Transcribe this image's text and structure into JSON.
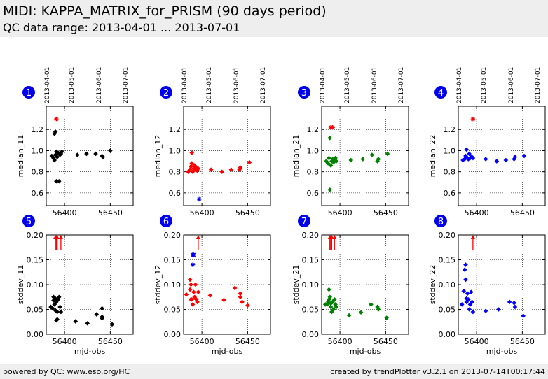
{
  "header": {
    "title": "MIDI: KAPPA_MATRIX_for_PRISM (90 days period)",
    "subtitle": "QC data range: 2013-04-01 ... 2013-07-01"
  },
  "footer": {
    "left": "powered by QC: www.eso.org/HC",
    "right": "created by trendPlotter v3.2.1 on 2013-07-14T00:17:44"
  },
  "colors": {
    "black": "#000000",
    "red": "#ff0000",
    "green": "#008000",
    "blue": "#0000ff",
    "badge": "#0000ee",
    "header_bg": "#eeeeee"
  },
  "chart_data": [
    {
      "type": "scatter",
      "panel": "1",
      "color": "#000000",
      "ylabel": "median_11",
      "xlim": [
        56380,
        56475
      ],
      "ylim": [
        0.48,
        1.42
      ],
      "yticks": [
        "0.6",
        "0.8",
        "1.0",
        "1.2"
      ],
      "xticks": [
        "56400",
        "56450"
      ],
      "top_ticks": [
        "2013-04-01",
        "2013-05-01",
        "2013-06-01",
        "2013-07-01"
      ],
      "points": [
        [
          56386,
          0.95
        ],
        [
          56388,
          0.93
        ],
        [
          56389,
          1.16
        ],
        [
          56390,
          1.18
        ],
        [
          56389,
          0.91
        ],
        [
          56390,
          0.96
        ],
        [
          56391,
          0.99
        ],
        [
          56392,
          0.94
        ],
        [
          56393,
          0.98
        ],
        [
          56394,
          0.97
        ],
        [
          56395,
          0.96
        ],
        [
          56396,
          0.97
        ],
        [
          56397,
          0.99
        ],
        [
          56391,
          0.71
        ],
        [
          56394,
          0.71
        ],
        [
          56414,
          0.96
        ],
        [
          56424,
          0.97
        ],
        [
          56434,
          0.97
        ],
        [
          56441,
          0.95
        ],
        [
          56442,
          0.94
        ],
        [
          56450,
          1.0
        ]
      ],
      "outliers": [
        [
          56391,
          1.3
        ]
      ],
      "arrows": []
    },
    {
      "type": "scatter",
      "panel": "2",
      "color": "#ff0000",
      "ylabel": "median_12",
      "xlim": [
        56380,
        56475
      ],
      "ylim": [
        0.48,
        1.42
      ],
      "yticks": [
        "0.6",
        "0.8",
        "1.0",
        "1.2"
      ],
      "xticks": [
        "56400",
        "56450"
      ],
      "top_ticks": [
        "2013-04-01",
        "2013-05-01",
        "2013-06-01",
        "2013-07-01"
      ],
      "points": [
        [
          56385,
          0.8
        ],
        [
          56387,
          0.82
        ],
        [
          56388,
          0.85
        ],
        [
          56389,
          0.98
        ],
        [
          56389,
          0.88
        ],
        [
          56390,
          0.8
        ],
        [
          56391,
          0.83
        ],
        [
          56392,
          0.86
        ],
        [
          56393,
          0.82
        ],
        [
          56394,
          0.84
        ],
        [
          56395,
          0.81
        ],
        [
          56396,
          0.83
        ],
        [
          56410,
          0.82
        ],
        [
          56422,
          0.8
        ],
        [
          56432,
          0.82
        ],
        [
          56441,
          0.82
        ],
        [
          56442,
          0.84
        ],
        [
          56452,
          0.89
        ]
      ],
      "outliers": [
        [
          56397,
          0.54,
          "#0000ff"
        ]
      ],
      "arrows": []
    },
    {
      "type": "scatter",
      "panel": "3",
      "color": "#008000",
      "ylabel": "median_21",
      "xlim": [
        56380,
        56475
      ],
      "ylim": [
        0.48,
        1.42
      ],
      "yticks": [
        "0.6",
        "0.8",
        "1.0",
        "1.2"
      ],
      "xticks": [
        "56400",
        "56450"
      ],
      "top_ticks": [
        "2013-04-01",
        "2013-05-01",
        "2013-06-01",
        "2013-07-01"
      ],
      "points": [
        [
          56385,
          0.9
        ],
        [
          56387,
          0.88
        ],
        [
          56388,
          0.93
        ],
        [
          56389,
          1.12
        ],
        [
          56390,
          0.86
        ],
        [
          56391,
          0.9
        ],
        [
          56392,
          0.92
        ],
        [
          56393,
          0.89
        ],
        [
          56394,
          0.91
        ],
        [
          56395,
          0.93
        ],
        [
          56396,
          0.9
        ],
        [
          56389,
          0.63
        ],
        [
          56412,
          0.91
        ],
        [
          56425,
          0.92
        ],
        [
          56435,
          0.96
        ],
        [
          56441,
          0.9
        ],
        [
          56442,
          0.92
        ],
        [
          56452,
          0.97
        ]
      ],
      "outliers": [
        [
          56390,
          1.22
        ],
        [
          56392,
          1.22
        ]
      ],
      "arrows": []
    },
    {
      "type": "scatter",
      "panel": "4",
      "color": "#0000ff",
      "ylabel": "median_22",
      "xlim": [
        56380,
        56475
      ],
      "ylim": [
        0.48,
        1.42
      ],
      "yticks": [
        "0.6",
        "0.8",
        "1.0",
        "1.2"
      ],
      "xticks": [
        "56400",
        "56450"
      ],
      "top_ticks": [
        "2013-04-01",
        "2013-05-01",
        "2013-06-01",
        "2013-07-01"
      ],
      "points": [
        [
          56385,
          0.91
        ],
        [
          56387,
          0.92
        ],
        [
          56388,
          0.95
        ],
        [
          56389,
          1.01
        ],
        [
          56390,
          0.93
        ],
        [
          56391,
          0.92
        ],
        [
          56392,
          0.97
        ],
        [
          56393,
          0.93
        ],
        [
          56394,
          0.94
        ],
        [
          56395,
          0.94
        ],
        [
          56396,
          0.93
        ],
        [
          56410,
          0.92
        ],
        [
          56422,
          0.9
        ],
        [
          56432,
          0.91
        ],
        [
          56441,
          0.92
        ],
        [
          56442,
          0.94
        ],
        [
          56452,
          0.95
        ]
      ],
      "outliers": [
        [
          56396,
          1.3
        ]
      ],
      "arrows": []
    },
    {
      "type": "scatter",
      "panel": "5",
      "color": "#000000",
      "ylabel": "stddev_11",
      "xlabel": "mjd-obs",
      "xlim": [
        56380,
        56475
      ],
      "ylim": [
        0.0,
        0.2
      ],
      "yticks": [
        "0.00",
        "0.05",
        "0.10",
        "0.15",
        "0.20"
      ],
      "xticks": [
        "56400",
        "56450"
      ],
      "points": [
        [
          56385,
          0.055
        ],
        [
          56387,
          0.052
        ],
        [
          56388,
          0.075
        ],
        [
          56388,
          0.068
        ],
        [
          56389,
          0.06
        ],
        [
          56390,
          0.048
        ],
        [
          56390,
          0.072
        ],
        [
          56391,
          0.065
        ],
        [
          56392,
          0.045
        ],
        [
          56392,
          0.03
        ],
        [
          56393,
          0.07
        ],
        [
          56394,
          0.075
        ],
        [
          56395,
          0.055
        ],
        [
          56396,
          0.045
        ],
        [
          56391,
          0.028
        ],
        [
          56412,
          0.026
        ],
        [
          56425,
          0.022
        ],
        [
          56435,
          0.04
        ],
        [
          56441,
          0.052
        ],
        [
          56441,
          0.035
        ],
        [
          56441,
          0.032
        ],
        [
          56452,
          0.02
        ]
      ],
      "outliers": [],
      "arrows": [
        [
          56390,
          "#ff0000"
        ],
        [
          56391,
          "#ff0000"
        ],
        [
          56392,
          "#ff0000"
        ],
        [
          56396,
          "#ff0000"
        ]
      ]
    },
    {
      "type": "scatter",
      "panel": "6",
      "color": "#ff0000",
      "ylabel": "stddev_12",
      "xlabel": "mjd-obs",
      "xlim": [
        56380,
        56475
      ],
      "ylim": [
        0.0,
        0.2
      ],
      "yticks": [
        "0.00",
        "0.05",
        "0.10",
        "0.15",
        "0.20"
      ],
      "xticks": [
        "56400",
        "56450"
      ],
      "points": [
        [
          56383,
          0.08
        ],
        [
          56387,
          0.11
        ],
        [
          56387,
          0.09
        ],
        [
          56388,
          0.07
        ],
        [
          56388,
          0.1
        ],
        [
          56389,
          0.07
        ],
        [
          56390,
          0.06
        ],
        [
          56391,
          0.085
        ],
        [
          56392,
          0.075
        ],
        [
          56393,
          0.1
        ],
        [
          56394,
          0.07
        ],
        [
          56395,
          0.065
        ],
        [
          56396,
          0.085
        ],
        [
          56409,
          0.078
        ],
        [
          56424,
          0.069
        ],
        [
          56436,
          0.093
        ],
        [
          56442,
          0.082
        ],
        [
          56442,
          0.075
        ],
        [
          56444,
          0.065
        ],
        [
          56450,
          0.058
        ]
      ],
      "outliers": [
        [
          56390,
          0.16,
          "#0000ff"
        ],
        [
          56391,
          0.16,
          "#0000ff"
        ],
        [
          56390,
          0.14,
          "#0000ff"
        ]
      ],
      "arrows": [
        [
          56396,
          "#ff0000"
        ]
      ]
    },
    {
      "type": "scatter",
      "panel": "7",
      "color": "#008000",
      "ylabel": "stddev_21",
      "xlabel": "mjd-obs",
      "xlim": [
        56380,
        56475
      ],
      "ylim": [
        0.0,
        0.2
      ],
      "yticks": [
        "0.00",
        "0.05",
        "0.10",
        "0.15",
        "0.20"
      ],
      "xticks": [
        "56400",
        "56450"
      ],
      "points": [
        [
          56384,
          0.06
        ],
        [
          56386,
          0.06
        ],
        [
          56387,
          0.065
        ],
        [
          56388,
          0.09
        ],
        [
          56388,
          0.07
        ],
        [
          56389,
          0.075
        ],
        [
          56390,
          0.062
        ],
        [
          56390,
          0.055
        ],
        [
          56391,
          0.045
        ],
        [
          56392,
          0.065
        ],
        [
          56393,
          0.05
        ],
        [
          56394,
          0.07
        ],
        [
          56395,
          0.06
        ],
        [
          56396,
          0.055
        ],
        [
          56410,
          0.038
        ],
        [
          56423,
          0.044
        ],
        [
          56434,
          0.06
        ],
        [
          56441,
          0.055
        ],
        [
          56442,
          0.05
        ],
        [
          56451,
          0.033
        ]
      ],
      "outliers": [],
      "arrows": [
        [
          56389,
          "#ff0000"
        ],
        [
          56390,
          "#ff0000"
        ],
        [
          56391,
          "#ff0000"
        ],
        [
          56394,
          "#ff0000"
        ]
      ]
    },
    {
      "type": "scatter",
      "panel": "8",
      "color": "#0000ff",
      "ylabel": "stddev_22",
      "xlabel": "mjd-obs",
      "xlim": [
        56380,
        56475
      ],
      "ylim": [
        0.0,
        0.2
      ],
      "yticks": [
        "0.00",
        "0.05",
        "0.10",
        "0.15",
        "0.20"
      ],
      "xticks": [
        "56400",
        "56450"
      ],
      "points": [
        [
          56384,
          0.06
        ],
        [
          56386,
          0.087
        ],
        [
          56387,
          0.13
        ],
        [
          56388,
          0.14
        ],
        [
          56388,
          0.11
        ],
        [
          56389,
          0.072
        ],
        [
          56389,
          0.065
        ],
        [
          56390,
          0.082
        ],
        [
          56391,
          0.07
        ],
        [
          56392,
          0.05
        ],
        [
          56393,
          0.06
        ],
        [
          56394,
          0.085
        ],
        [
          56395,
          0.065
        ],
        [
          56396,
          0.045
        ],
        [
          56410,
          0.047
        ],
        [
          56424,
          0.05
        ],
        [
          56436,
          0.065
        ],
        [
          56441,
          0.063
        ],
        [
          56442,
          0.055
        ],
        [
          56451,
          0.037
        ]
      ],
      "outliers": [],
      "arrows": [
        [
          56396,
          "#ff0000"
        ]
      ]
    }
  ]
}
